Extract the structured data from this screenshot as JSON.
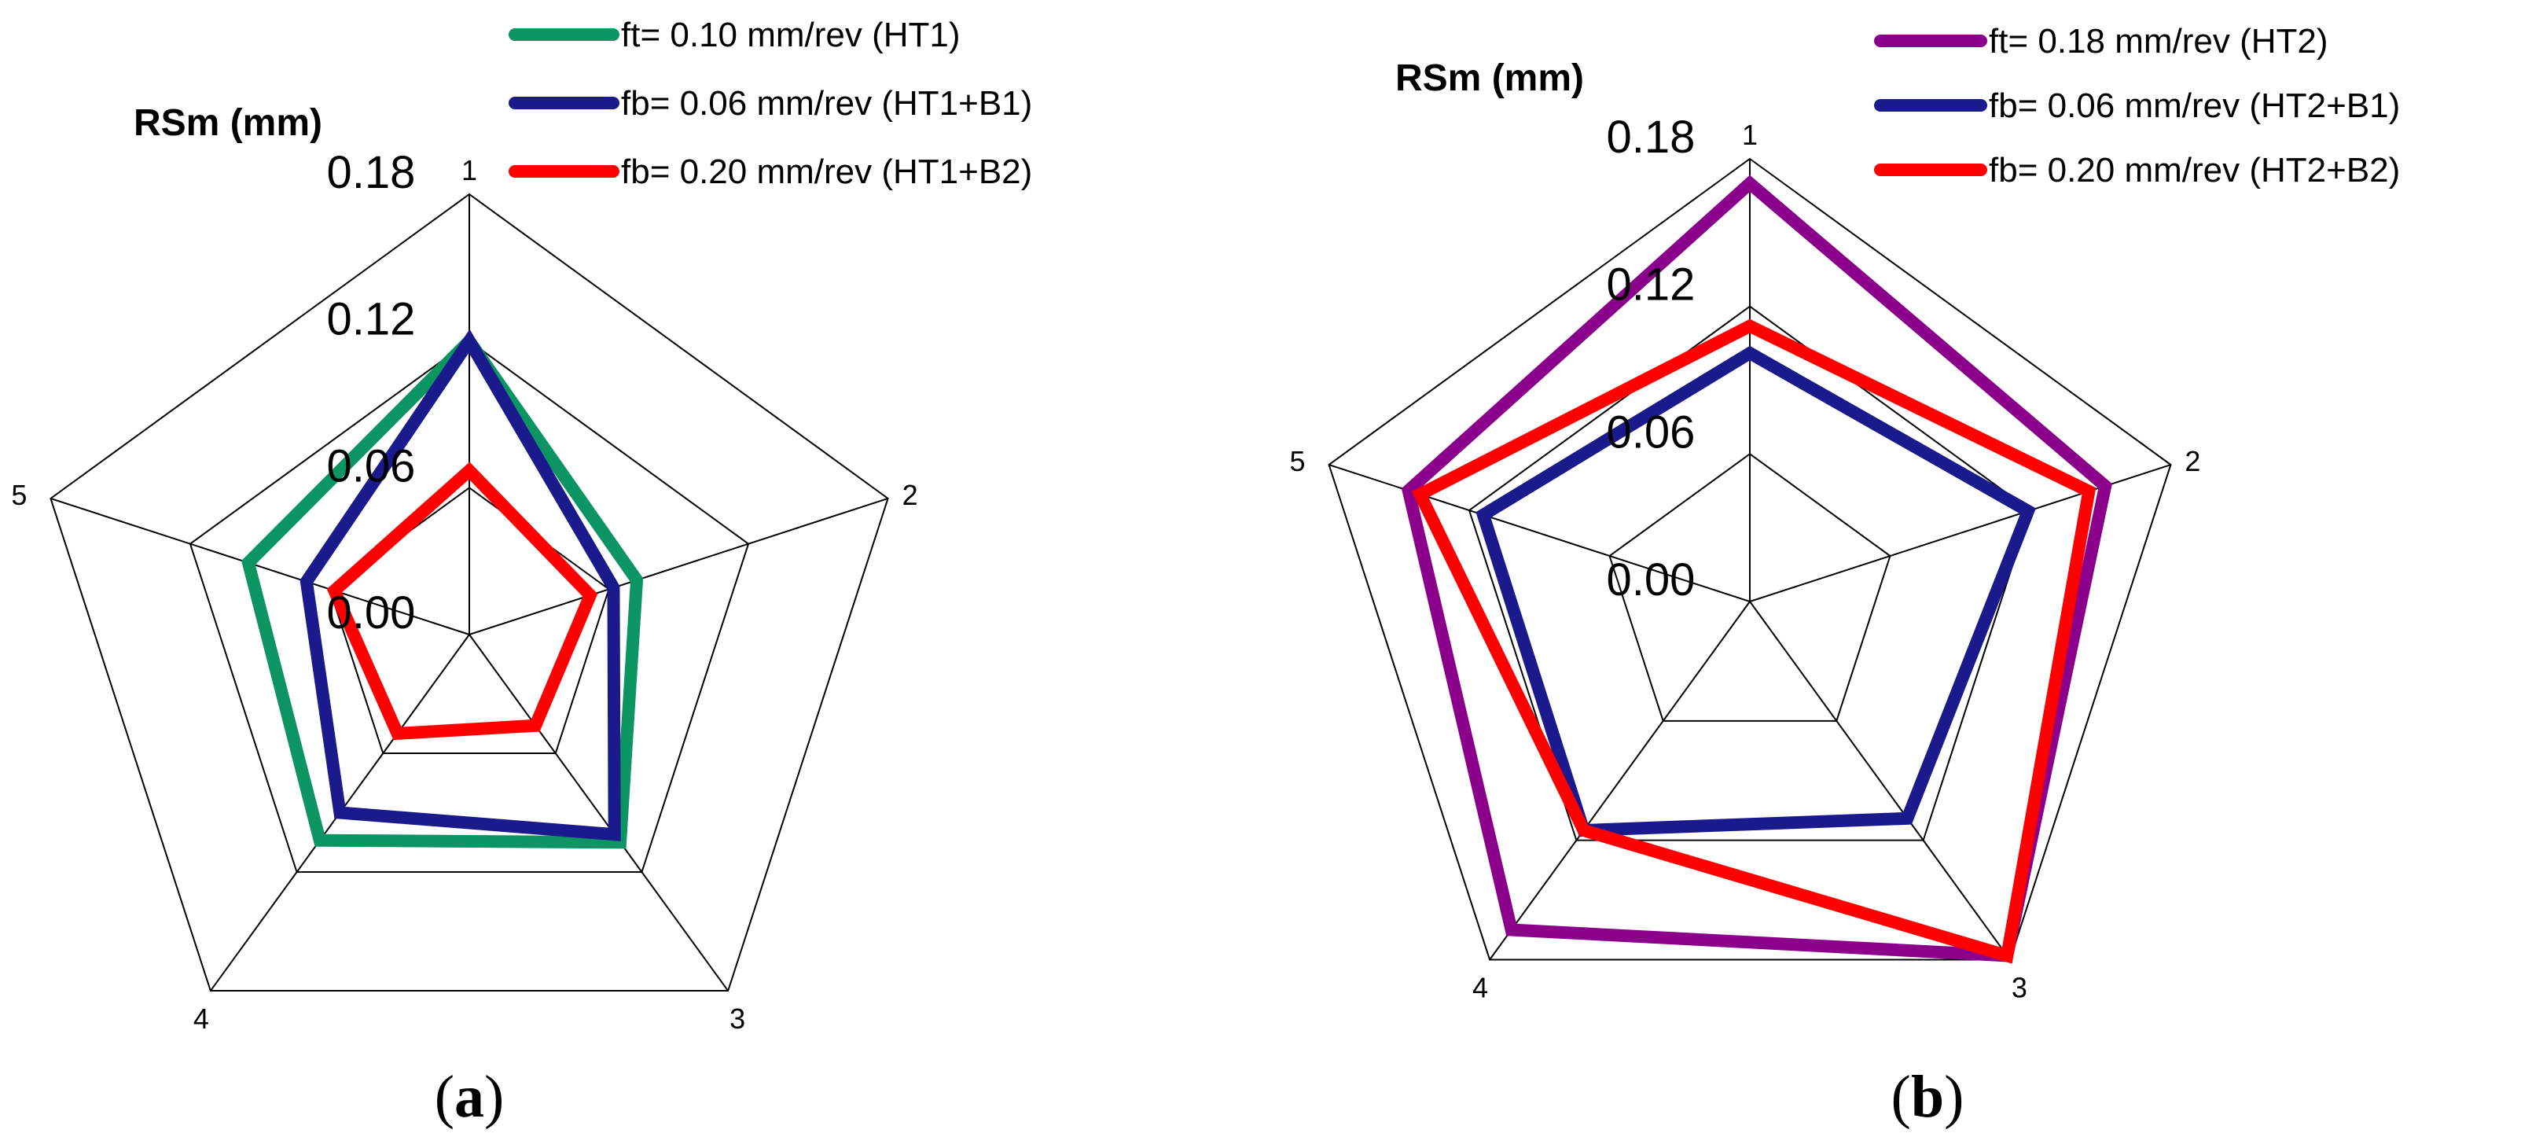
{
  "chart_data": [
    {
      "type": "radar",
      "panel": "a",
      "ylabel": "RSm (mm)",
      "categories": [
        "1",
        "2",
        "3",
        "4",
        "5"
      ],
      "rlim": [
        0.0,
        0.18
      ],
      "ticks": [
        "0.00",
        "0.06",
        "0.12",
        "0.18"
      ],
      "legend_position": "top",
      "series": [
        {
          "name": "ft= 0.10 mm/rev (HT1)",
          "color": "#0c9463",
          "values": [
            0.12,
            0.072,
            0.105,
            0.104,
            0.095
          ]
        },
        {
          "name": "fb= 0.06 mm/rev (HT1+B1)",
          "color": "#1a1a8c",
          "values": [
            0.12,
            0.062,
            0.101,
            0.09,
            0.07
          ]
        },
        {
          "name": "fb= 0.20 mm/rev (HT1+B2)",
          "color": "#ff0000",
          "values": [
            0.067,
            0.052,
            0.046,
            0.05,
            0.058
          ]
        }
      ]
    },
    {
      "type": "radar",
      "panel": "b",
      "ylabel": "RSm (mm)",
      "categories": [
        "1",
        "2",
        "3",
        "4",
        "5"
      ],
      "rlim": [
        0.0,
        0.18
      ],
      "ticks": [
        "0.00",
        "0.06",
        "0.12",
        "0.18"
      ],
      "legend_position": "top",
      "series": [
        {
          "name": "ft= 0.18 mm/rev (HT2)",
          "color": "#8b008b",
          "values": [
            0.17,
            0.152,
            0.178,
            0.165,
            0.146
          ]
        },
        {
          "name": "fb= 0.06 mm/rev (HT2+B1)",
          "color": "#1a1a8c",
          "values": [
            0.101,
            0.119,
            0.109,
            0.115,
            0.114
          ]
        },
        {
          "name": "fb= 0.20 mm/rev (HT2+B2)",
          "color": "#ff0000",
          "values": [
            0.112,
            0.145,
            0.178,
            0.115,
            0.141
          ]
        }
      ]
    }
  ]
}
